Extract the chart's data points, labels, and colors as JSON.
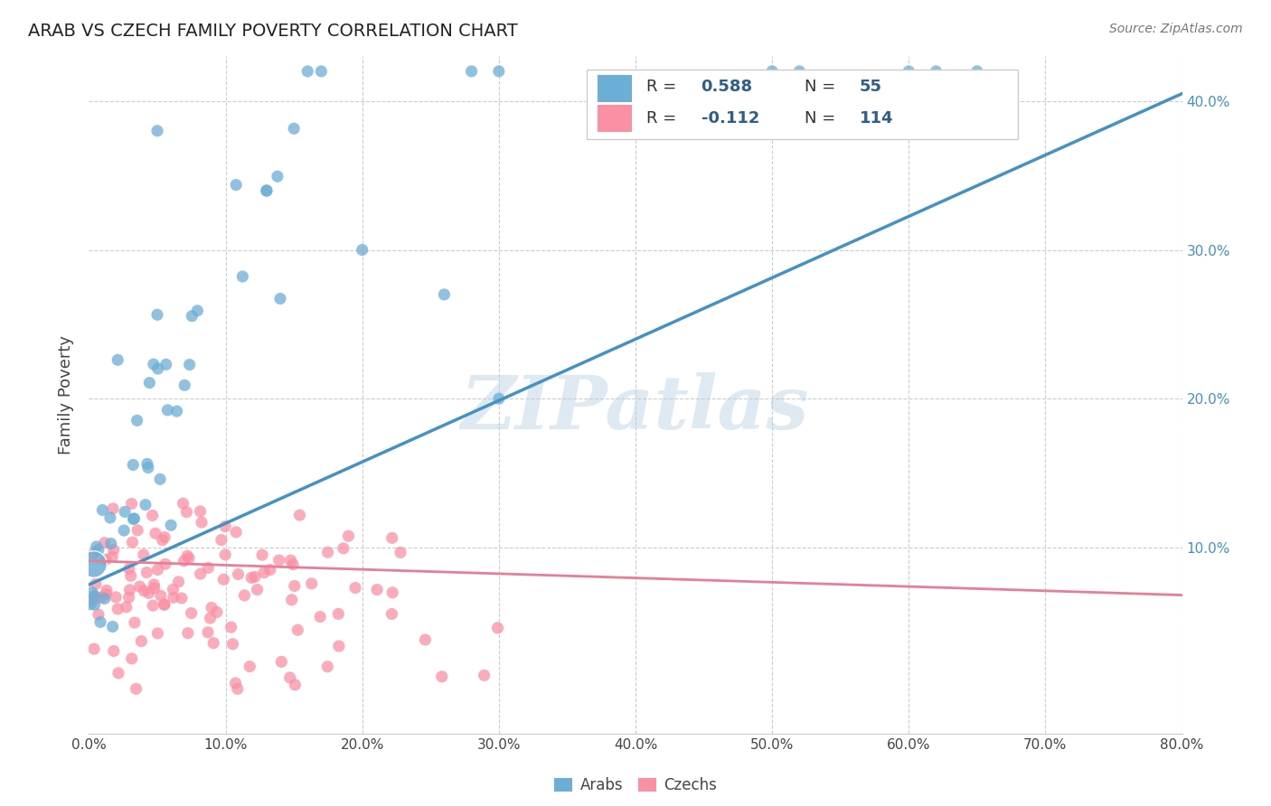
{
  "title": "ARAB VS CZECH FAMILY POVERTY CORRELATION CHART",
  "source": "Source: ZipAtlas.com",
  "ylabel": "Family Poverty",
  "arab_color": "#6baed6",
  "czech_color": "#fb8fa4",
  "arab_line_color": "#4292c6",
  "czech_line_color": "#e87d96",
  "legend_text_color": "#2c5f8a",
  "watermark": "ZIPatlas",
  "background_color": "#ffffff",
  "grid_color": "#cccccc",
  "xlim": [
    0.0,
    0.8
  ],
  "ylim": [
    -0.025,
    0.43
  ],
  "arab_R": 0.588,
  "arab_N": 55,
  "czech_R": -0.112,
  "czech_N": 114,
  "arab_line_x": [
    0.0,
    0.8
  ],
  "arab_line_y": [
    0.075,
    0.405
  ],
  "czech_line_x": [
    0.0,
    0.8
  ],
  "czech_line_y": [
    0.091,
    0.068
  ]
}
